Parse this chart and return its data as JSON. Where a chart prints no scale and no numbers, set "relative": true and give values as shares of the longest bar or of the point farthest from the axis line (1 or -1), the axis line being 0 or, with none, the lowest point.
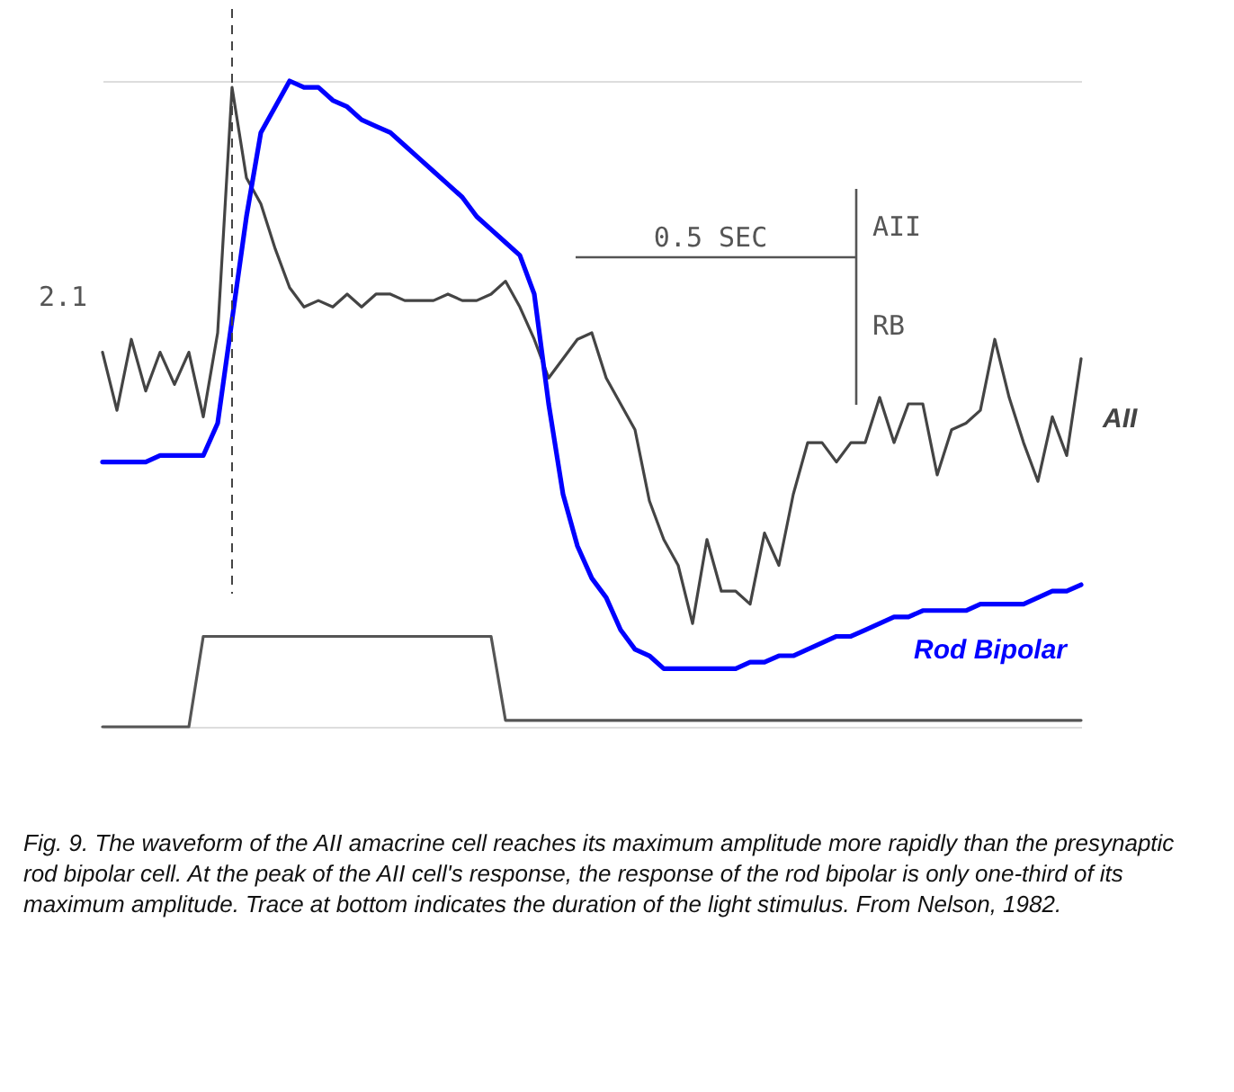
{
  "chart_data": {
    "type": "line",
    "relative": true,
    "categories": [
      null,
      null,
      null,
      null,
      null,
      null,
      null,
      null,
      null,
      null,
      null,
      null,
      null,
      null,
      null,
      null,
      null,
      null,
      null,
      null,
      null,
      null,
      null,
      null,
      null,
      null,
      null,
      null,
      null,
      null,
      null,
      null,
      null,
      null,
      null,
      null,
      null,
      null,
      null,
      null,
      null,
      null,
      null,
      null,
      null,
      null,
      null,
      null,
      null,
      null,
      null,
      null,
      null,
      null,
      null,
      null,
      null,
      null,
      null,
      null,
      null,
      null,
      null,
      null,
      null,
      null,
      null,
      null,
      null
    ],
    "series": [
      {
        "name": "AII",
        "color": "#444444",
        "values": [
          0.58,
          0.49,
          0.6,
          0.52,
          0.58,
          0.53,
          0.58,
          0.48,
          0.61,
          0.99,
          0.85,
          0.81,
          0.74,
          0.68,
          0.65,
          0.66,
          0.65,
          0.67,
          0.65,
          0.67,
          0.67,
          0.66,
          0.66,
          0.66,
          0.67,
          0.66,
          0.66,
          0.67,
          0.69,
          0.65,
          0.6,
          0.54,
          0.57,
          0.6,
          0.61,
          0.54,
          0.5,
          0.46,
          0.35,
          0.29,
          0.25,
          0.16,
          0.29,
          0.21,
          0.21,
          0.19,
          0.3,
          0.25,
          0.36,
          0.44,
          0.44,
          0.41,
          0.44,
          0.44,
          0.51,
          0.44,
          0.5,
          0.5,
          0.39,
          0.46,
          0.47,
          0.49,
          0.6,
          0.51,
          0.44,
          0.38,
          0.48,
          0.42,
          0.57
        ]
      },
      {
        "name": "Rod Bipolar",
        "color": "#0000ff",
        "values": [
          0.41,
          0.41,
          0.41,
          0.41,
          0.42,
          0.42,
          0.42,
          0.42,
          0.47,
          0.63,
          0.79,
          0.92,
          0.96,
          1.0,
          0.99,
          0.99,
          0.97,
          0.96,
          0.94,
          0.93,
          0.92,
          0.9,
          0.88,
          0.86,
          0.84,
          0.82,
          0.79,
          0.77,
          0.75,
          0.73,
          0.67,
          0.5,
          0.36,
          0.28,
          0.23,
          0.2,
          0.15,
          0.12,
          0.11,
          0.09,
          0.09,
          0.09,
          0.09,
          0.09,
          0.09,
          0.1,
          0.1,
          0.11,
          0.11,
          0.12,
          0.13,
          0.14,
          0.14,
          0.15,
          0.16,
          0.17,
          0.17,
          0.18,
          0.18,
          0.18,
          0.18,
          0.19,
          0.19,
          0.19,
          0.19,
          0.2,
          0.21,
          0.21,
          0.22
        ]
      },
      {
        "color": "#555555",
        "values": [
          0,
          0,
          0,
          0,
          0,
          0,
          0,
          0.14,
          0.14,
          0.14,
          0.14,
          0.14,
          0.14,
          0.14,
          0.14,
          0.14,
          0.14,
          0.14,
          0.14,
          0.14,
          0.14,
          0.14,
          0.14,
          0.14,
          0.14,
          0.14,
          0.14,
          0.14,
          0.01,
          0.01,
          0.01,
          0.01,
          0.01,
          0.01,
          0.01,
          0.01,
          0.01,
          0.01,
          0.01,
          0.01,
          0.01,
          0.01,
          0.01,
          0.01,
          0.01,
          0.01,
          0.01,
          0.01,
          0.01,
          0.01,
          0.01,
          0.01,
          0.01,
          0.01,
          0.01,
          0.01,
          0.01,
          0.01,
          0.01,
          0.01,
          0.01,
          0.01,
          0.01,
          0.01,
          0.01,
          0.01,
          0.01,
          0.01,
          0.01
        ]
      }
    ],
    "annotations": [
      "2.1",
      "0.5 SEC",
      "AII",
      "RB",
      "Fig. 9. The waveform of the AII amacrine cell reaches its maximum amplitude more rapidly than the presynaptic rod bipolar cell. At the peak of the AII cell's response, the response of the rod bipolar is only one-third of its maximum amplitude. Trace at bottom indicates the duration of the light stimulus. From Nelson, 1982."
    ]
  }
}
